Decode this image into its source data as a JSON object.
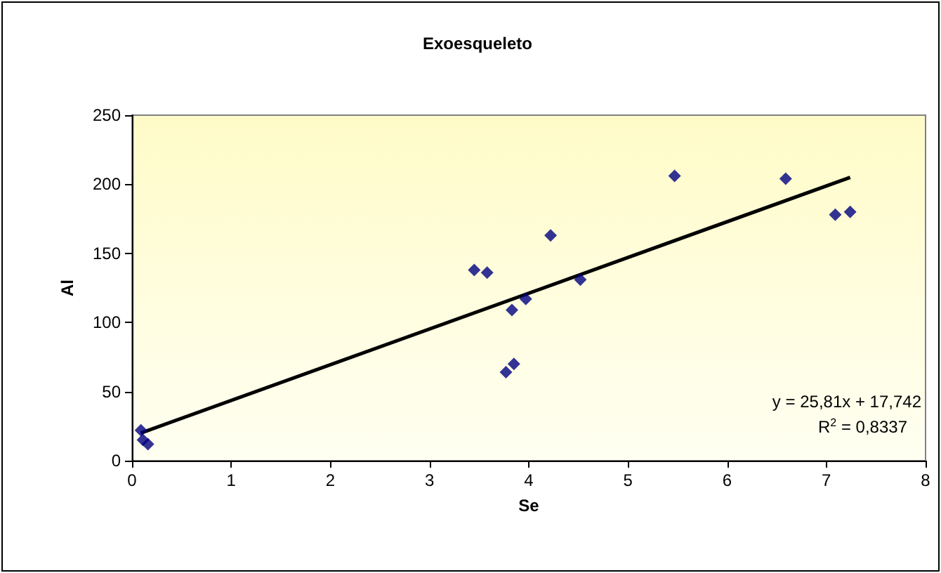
{
  "chart_data": {
    "type": "scatter",
    "title": "Exoesqueleto",
    "xlabel": "Se",
    "ylabel": "Al",
    "xlim": [
      0,
      8
    ],
    "xticks": [
      0,
      1,
      2,
      3,
      4,
      5,
      6,
      7,
      8
    ],
    "ylim": [
      0,
      250
    ],
    "yticks": [
      0,
      50,
      100,
      150,
      200,
      250
    ],
    "grid": false,
    "marker": "diamond",
    "series": [
      {
        "color": "#000080",
        "x": [
          0.09,
          0.11,
          0.16,
          3.45,
          3.58,
          3.83,
          3.97,
          3.77,
          3.85,
          4.22,
          4.52,
          5.47,
          6.59,
          7.09,
          7.24
        ],
        "values": [
          22,
          15,
          12,
          138,
          136,
          109,
          117,
          64,
          70,
          163,
          131,
          206,
          204,
          178,
          180
        ]
      },
      {
        "type": "line",
        "color": "#000000",
        "marker": "none",
        "line_style": "solid",
        "x": [
          0.09,
          7.24
        ],
        "values": [
          20,
          205
        ]
      }
    ],
    "annotations": [
      "y = 25,81x + 17,742",
      "R$^{2}$ = 0,8337"
    ]
  }
}
